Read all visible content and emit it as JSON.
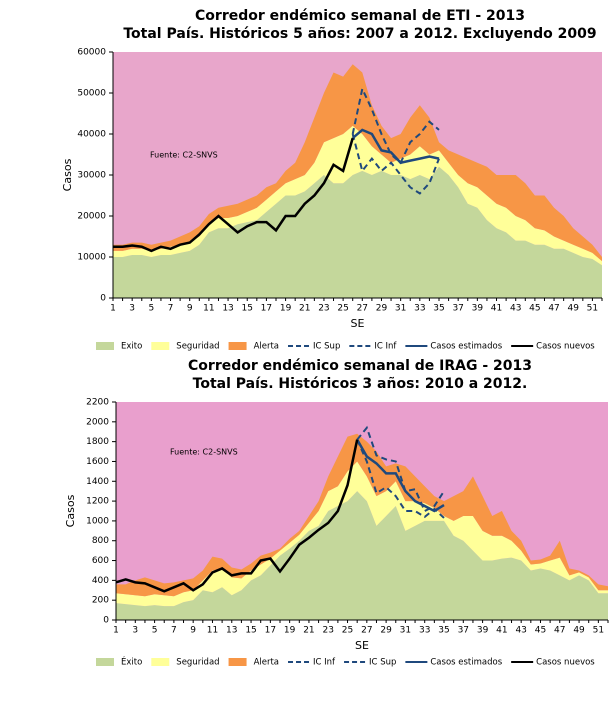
{
  "chart_data": [
    {
      "type": "area",
      "title": "Corredor endémico semanal de ETI - 2013",
      "subtitle": "Total País. Históricos 5 años: 2007 a 2012. Excluyendo 2009",
      "x_label": "SE",
      "y_label": "Casos",
      "annotation": "Fuente: C2-SNVS",
      "background_color": "#e8a6cb",
      "x": [
        1,
        2,
        3,
        4,
        5,
        6,
        7,
        8,
        9,
        10,
        11,
        12,
        13,
        14,
        15,
        16,
        17,
        18,
        19,
        20,
        21,
        22,
        23,
        24,
        25,
        26,
        27,
        28,
        29,
        30,
        31,
        32,
        33,
        34,
        35,
        36,
        37,
        38,
        39,
        40,
        41,
        42,
        43,
        44,
        45,
        46,
        47,
        48,
        49,
        50,
        51,
        52
      ],
      "xlim": [
        1,
        52
      ],
      "xticks": [
        1,
        3,
        5,
        7,
        9,
        11,
        13,
        15,
        17,
        19,
        21,
        23,
        25,
        27,
        29,
        31,
        33,
        35,
        37,
        39,
        41,
        43,
        45,
        47,
        49,
        51
      ],
      "ylim": [
        0,
        60000
      ],
      "yticks": [
        0,
        10000,
        20000,
        30000,
        40000,
        50000,
        60000
      ],
      "series": [
        {
          "name": "Exito",
          "kind": "area",
          "color": "#c4d79b",
          "values": [
            10000,
            10000,
            10500,
            10500,
            10000,
            10500,
            10500,
            11000,
            11500,
            13000,
            16000,
            17000,
            17000,
            18000,
            18500,
            19000,
            21000,
            23000,
            25000,
            25000,
            26000,
            28000,
            30000,
            28000,
            28000,
            30000,
            31000,
            30000,
            31000,
            30000,
            30000,
            29000,
            30000,
            29000,
            32000,
            30000,
            27000,
            23000,
            22000,
            19000,
            17000,
            16000,
            14000,
            14000,
            13000,
            13000,
            12000,
            12000,
            11000,
            10000,
            9500,
            8000
          ]
        },
        {
          "name": "Seguridad",
          "kind": "area",
          "color": "#ffff99",
          "values": [
            1500,
            1500,
            1500,
            1500,
            1500,
            1500,
            2000,
            2000,
            2000,
            2000,
            2000,
            2500,
            2500,
            2000,
            2500,
            3000,
            3000,
            3000,
            3000,
            4000,
            4000,
            5000,
            8000,
            11000,
            12000,
            12000,
            9000,
            7000,
            4000,
            3000,
            4000,
            6000,
            7000,
            6000,
            4000,
            3000,
            3000,
            5000,
            5000,
            6000,
            6000,
            6000,
            6000,
            5000,
            4000,
            3500,
            3000,
            2000,
            2000,
            2000,
            1500,
            1000
          ]
        },
        {
          "name": "Alerta",
          "kind": "area",
          "color": "#f79646",
          "values": [
            1500,
            1500,
            1500,
            1500,
            1500,
            1500,
            1500,
            2000,
            2500,
            2500,
            2500,
            2500,
            3000,
            3000,
            3000,
            3000,
            3000,
            2000,
            3000,
            4000,
            8000,
            11000,
            12000,
            16000,
            14000,
            15000,
            15000,
            10000,
            7000,
            6000,
            6000,
            9000,
            10000,
            9000,
            2000,
            3000,
            5000,
            6000,
            6000,
            7000,
            7000,
            8000,
            10000,
            9000,
            8000,
            8500,
            7000,
            6000,
            4000,
            3000,
            2000,
            1000
          ]
        },
        {
          "name": "IC Sup",
          "kind": "line",
          "dash": true,
          "color": "#1f497d",
          "values": [
            null,
            null,
            null,
            null,
            null,
            null,
            null,
            null,
            null,
            null,
            null,
            null,
            null,
            null,
            null,
            null,
            null,
            null,
            null,
            null,
            null,
            null,
            null,
            null,
            null,
            40000,
            51000,
            46000,
            40000,
            35000,
            33000,
            38000,
            40000,
            43000,
            41000,
            null,
            null,
            null,
            null,
            null,
            null,
            null,
            null,
            null,
            null,
            null,
            null,
            null,
            null,
            null,
            null,
            null
          ]
        },
        {
          "name": "IC Inf",
          "kind": "line",
          "dash": true,
          "color": "#1f497d",
          "values": [
            null,
            null,
            null,
            null,
            null,
            null,
            null,
            null,
            null,
            null,
            null,
            null,
            null,
            null,
            null,
            null,
            null,
            null,
            null,
            null,
            null,
            null,
            null,
            null,
            null,
            40000,
            31000,
            34000,
            31000,
            33000,
            30000,
            27000,
            25500,
            28000,
            34000,
            null,
            null,
            null,
            null,
            null,
            null,
            null,
            null,
            null,
            null,
            null,
            null,
            null,
            null,
            null,
            null,
            null
          ]
        },
        {
          "name": "Casos estimados",
          "kind": "line",
          "color": "#1f497d",
          "values": [
            null,
            null,
            null,
            null,
            null,
            null,
            null,
            null,
            null,
            null,
            null,
            null,
            null,
            null,
            null,
            null,
            null,
            null,
            null,
            null,
            null,
            null,
            null,
            null,
            null,
            39000,
            41000,
            40000,
            36000,
            35500,
            33000,
            33500,
            34000,
            34500,
            34000,
            null,
            null,
            null,
            null,
            null,
            null,
            null,
            null,
            null,
            null,
            null,
            null,
            null,
            null,
            null,
            null,
            null
          ]
        },
        {
          "name": "Casos nuevos",
          "kind": "line",
          "color": "#000000",
          "values": [
            12500,
            12500,
            12800,
            12500,
            11500,
            12500,
            12000,
            13000,
            13500,
            15500,
            18000,
            20000,
            18000,
            16000,
            17500,
            18500,
            18500,
            16500,
            20000,
            20000,
            23000,
            25000,
            28000,
            32500,
            31000,
            39000,
            null,
            null,
            null,
            null,
            null,
            null,
            null,
            null,
            null,
            null,
            null,
            null,
            null,
            null,
            null,
            null,
            null,
            null,
            null,
            null,
            null,
            null,
            null,
            null,
            null,
            null
          ]
        }
      ]
    },
    {
      "type": "area",
      "title": "Corredor endémico semanal de IRAG - 2013",
      "subtitle": "Total País. Históricos 3 años: 2010 a 2012.",
      "x_label": "SE",
      "y_label": "Casos",
      "annotation": "Fuente: C2-SNVS",
      "background_color": "#e99fcd",
      "x": [
        1,
        2,
        3,
        4,
        5,
        6,
        7,
        8,
        9,
        10,
        11,
        12,
        13,
        14,
        15,
        16,
        17,
        18,
        19,
        20,
        21,
        22,
        23,
        24,
        25,
        26,
        27,
        28,
        29,
        30,
        31,
        32,
        33,
        34,
        35,
        36,
        37,
        38,
        39,
        40,
        41,
        42,
        43,
        44,
        45,
        46,
        47,
        48,
        49,
        50,
        51,
        52
      ],
      "xlim": [
        1,
        52
      ],
      "xticks": [
        1,
        3,
        5,
        7,
        9,
        11,
        13,
        15,
        17,
        19,
        21,
        23,
        25,
        27,
        29,
        31,
        33,
        35,
        37,
        39,
        41,
        43,
        45,
        47,
        49,
        51
      ],
      "ylim": [
        0,
        2200
      ],
      "yticks": [
        0,
        200,
        400,
        600,
        800,
        1000,
        1200,
        1400,
        1600,
        1800,
        2000,
        2200
      ],
      "series": [
        {
          "name": "Éxito",
          "kind": "area",
          "color": "#c4d79b",
          "values": [
            170,
            160,
            150,
            140,
            150,
            140,
            140,
            180,
            200,
            300,
            280,
            330,
            250,
            300,
            400,
            450,
            550,
            650,
            720,
            800,
            900,
            950,
            1100,
            1150,
            1200,
            1300,
            1200,
            950,
            1050,
            1150,
            900,
            950,
            1000,
            1000,
            1000,
            850,
            800,
            700,
            600,
            600,
            620,
            630,
            600,
            500,
            520,
            500,
            450,
            400,
            450,
            400,
            270,
            270
          ]
        },
        {
          "name": "Seguridad",
          "kind": "area",
          "color": "#ffff99",
          "values": [
            100,
            100,
            100,
            100,
            110,
            110,
            100,
            100,
            100,
            100,
            220,
            190,
            180,
            120,
            100,
            110,
            70,
            50,
            60,
            60,
            80,
            150,
            200,
            200,
            300,
            300,
            250,
            300,
            250,
            250,
            300,
            250,
            180,
            130,
            50,
            150,
            250,
            350,
            300,
            250,
            230,
            170,
            100,
            60,
            50,
            100,
            180,
            50,
            30,
            30,
            30,
            30
          ]
        },
        {
          "name": "Alerta",
          "kind": "area",
          "color": "#f79646",
          "values": [
            90,
            100,
            150,
            190,
            140,
            120,
            140,
            120,
            120,
            100,
            140,
            100,
            100,
            90,
            70,
            90,
            60,
            20,
            40,
            40,
            70,
            100,
            150,
            300,
            350,
            280,
            350,
            450,
            250,
            180,
            350,
            250,
            170,
            120,
            150,
            250,
            250,
            400,
            350,
            200,
            250,
            100,
            100,
            40,
            40,
            50,
            170,
            70,
            20,
            20,
            60,
            40
          ]
        },
        {
          "name": "IC Inf",
          "kind": "line",
          "dash": true,
          "color": "#1f497d",
          "values": [
            null,
            null,
            null,
            null,
            null,
            null,
            null,
            null,
            null,
            null,
            null,
            null,
            null,
            null,
            null,
            null,
            null,
            null,
            null,
            null,
            null,
            null,
            null,
            null,
            null,
            1820,
            1600,
            1280,
            1340,
            1250,
            1100,
            1100,
            1040,
            1120,
            1030,
            null,
            null,
            null,
            null,
            null,
            null,
            null,
            null,
            null,
            null,
            null,
            null,
            null,
            null,
            null,
            null,
            null
          ]
        },
        {
          "name": "IC Sup",
          "kind": "line",
          "dash": true,
          "color": "#1f497d",
          "values": [
            null,
            null,
            null,
            null,
            null,
            null,
            null,
            null,
            null,
            null,
            null,
            null,
            null,
            null,
            null,
            null,
            null,
            null,
            null,
            null,
            null,
            null,
            null,
            null,
            null,
            1820,
            1940,
            1660,
            1620,
            1600,
            1300,
            1320,
            1100,
            1150,
            1300,
            null,
            null,
            null,
            null,
            null,
            null,
            null,
            null,
            null,
            null,
            null,
            null,
            null,
            null,
            null,
            null,
            null
          ]
        },
        {
          "name": "Casos estimados",
          "kind": "line",
          "color": "#1f497d",
          "values": [
            null,
            null,
            null,
            null,
            null,
            null,
            null,
            null,
            null,
            null,
            null,
            null,
            null,
            null,
            null,
            null,
            null,
            null,
            null,
            null,
            null,
            null,
            null,
            null,
            null,
            1820,
            1650,
            1580,
            1480,
            1480,
            1300,
            1200,
            1150,
            1100,
            1160,
            null,
            null,
            null,
            null,
            null,
            null,
            null,
            null,
            null,
            null,
            null,
            null,
            null,
            null,
            null,
            null,
            null
          ]
        },
        {
          "name": "Casos nuevos",
          "kind": "line",
          "color": "#000000",
          "values": [
            380,
            410,
            380,
            370,
            330,
            290,
            330,
            370,
            300,
            360,
            480,
            520,
            450,
            470,
            470,
            600,
            620,
            490,
            620,
            760,
            830,
            910,
            980,
            1100,
            1360,
            1820,
            null,
            null,
            null,
            null,
            null,
            null,
            null,
            null,
            null,
            null,
            null,
            null,
            null,
            null,
            null,
            null,
            null,
            null,
            null,
            null,
            null,
            null,
            null,
            null,
            null,
            null
          ]
        }
      ]
    }
  ]
}
